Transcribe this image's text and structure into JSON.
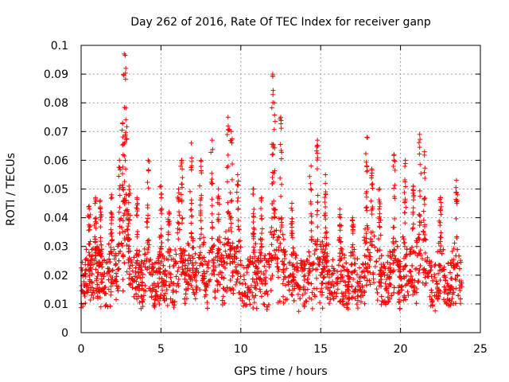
{
  "chart_data": {
    "type": "scatter",
    "title": "Day 262 of 2016, Rate Of TEC Index for receiver ganp",
    "xlabel": "GPS time / hours",
    "ylabel": "ROTI / TECUs",
    "xlim": [
      0,
      25
    ],
    "ylim": [
      0,
      0.1
    ],
    "x_ticks": [
      0,
      5,
      10,
      15,
      20,
      25
    ],
    "x_tick_labels": [
      "0",
      "5",
      "10",
      "15",
      "20",
      "25"
    ],
    "y_ticks": [
      0,
      0.01,
      0.02,
      0.03,
      0.04,
      0.05,
      0.06,
      0.07,
      0.08,
      0.09,
      0.1
    ],
    "y_tick_labels": [
      "0",
      "0.01",
      "0.02",
      "0.03",
      "0.04",
      "0.05",
      "0.06",
      "0.07",
      "0.08",
      "0.09",
      "0.1"
    ],
    "grid": true,
    "marker": "+",
    "marker_color": "#ff0000",
    "series": [
      {
        "name": "ROTI",
        "x_range": [
          0.0,
          23.85
        ],
        "baseline_band": [
          0.008,
          0.025
        ],
        "peaks": [
          {
            "x": 0.5,
            "y": 0.044
          },
          {
            "x": 0.9,
            "y": 0.047
          },
          {
            "x": 1.2,
            "y": 0.046
          },
          {
            "x": 1.9,
            "y": 0.048
          },
          {
            "x": 2.4,
            "y": 0.06
          },
          {
            "x": 2.6,
            "y": 0.073
          },
          {
            "x": 2.7,
            "y": 0.097
          },
          {
            "x": 2.8,
            "y": 0.092
          },
          {
            "x": 3.0,
            "y": 0.051
          },
          {
            "x": 3.5,
            "y": 0.047
          },
          {
            "x": 4.2,
            "y": 0.06
          },
          {
            "x": 5.0,
            "y": 0.051
          },
          {
            "x": 5.5,
            "y": 0.042
          },
          {
            "x": 6.1,
            "y": 0.05
          },
          {
            "x": 6.3,
            "y": 0.06
          },
          {
            "x": 6.9,
            "y": 0.066
          },
          {
            "x": 7.5,
            "y": 0.06
          },
          {
            "x": 8.2,
            "y": 0.067
          },
          {
            "x": 8.6,
            "y": 0.05
          },
          {
            "x": 9.2,
            "y": 0.075
          },
          {
            "x": 9.4,
            "y": 0.07
          },
          {
            "x": 9.8,
            "y": 0.055
          },
          {
            "x": 10.8,
            "y": 0.05
          },
          {
            "x": 11.3,
            "y": 0.047
          },
          {
            "x": 12.0,
            "y": 0.09
          },
          {
            "x": 12.1,
            "y": 0.08
          },
          {
            "x": 12.5,
            "y": 0.075
          },
          {
            "x": 13.2,
            "y": 0.045
          },
          {
            "x": 14.4,
            "y": 0.058
          },
          {
            "x": 14.8,
            "y": 0.067
          },
          {
            "x": 15.3,
            "y": 0.055
          },
          {
            "x": 16.2,
            "y": 0.043
          },
          {
            "x": 17.0,
            "y": 0.04
          },
          {
            "x": 17.9,
            "y": 0.068
          },
          {
            "x": 18.2,
            "y": 0.057
          },
          {
            "x": 18.7,
            "y": 0.05
          },
          {
            "x": 19.6,
            "y": 0.062
          },
          {
            "x": 20.3,
            "y": 0.06
          },
          {
            "x": 20.8,
            "y": 0.051
          },
          {
            "x": 21.2,
            "y": 0.069
          },
          {
            "x": 21.5,
            "y": 0.063
          },
          {
            "x": 22.5,
            "y": 0.047
          },
          {
            "x": 23.5,
            "y": 0.053
          }
        ]
      }
    ]
  }
}
